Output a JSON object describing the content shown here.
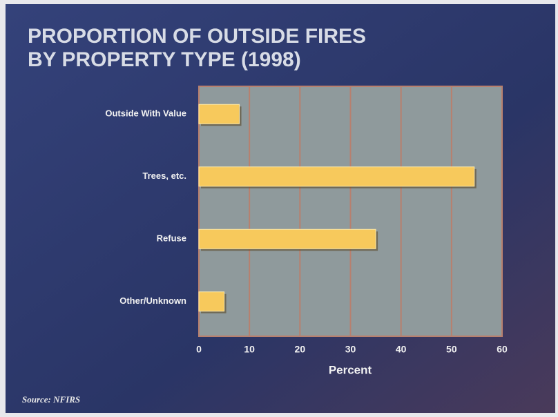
{
  "chart_data": {
    "type": "hbar",
    "title": [
      "PROPORTION OF OUTSIDE FIRES",
      "BY PROPERTY TYPE (1998)"
    ],
    "categories": [
      "Outside With Value",
      "Trees, etc.",
      "Refuse",
      "Other/Unknown"
    ],
    "values": [
      8,
      54.5,
      35,
      5
    ],
    "color": "#f7c95c",
    "xlabel": "Percent",
    "xlim": [
      0,
      60
    ],
    "xticks": [
      0,
      10,
      20,
      30,
      40,
      50,
      60
    ],
    "grid": true,
    "source": "Source: NFIRS"
  }
}
